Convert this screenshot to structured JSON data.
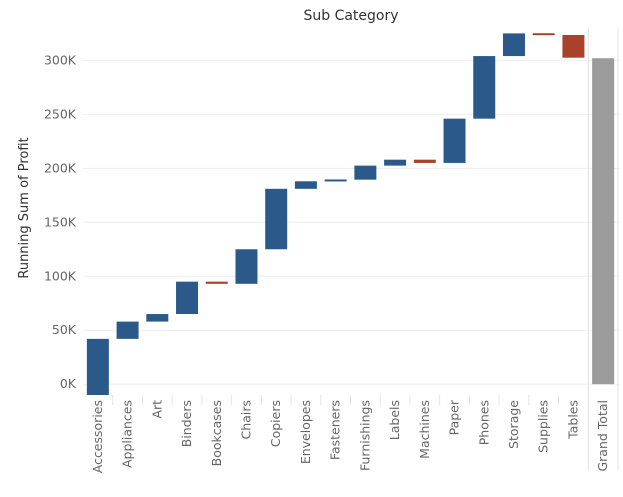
{
  "chart_data": {
    "type": "bar",
    "subtype": "waterfall",
    "title": "Sub Category",
    "ylabel": "Running Sum of Profit",
    "xlabel": "",
    "ylim": [
      -10000,
      330000
    ],
    "grid": true,
    "yticks": [
      0,
      50000,
      100000,
      150000,
      200000,
      250000,
      300000
    ],
    "ytick_labels": [
      "0K",
      "50K",
      "100K",
      "150K",
      "200K",
      "250K",
      "300K"
    ],
    "categories": [
      "Accessories",
      "Appliances",
      "Art",
      "Binders",
      "Bookcases",
      "Chairs",
      "Copiers",
      "Envelopes",
      "Fasteners",
      "Furnishings",
      "Labels",
      "Machines",
      "Paper",
      "Phones",
      "Storage",
      "Supplies",
      "Tables",
      "Grand Total"
    ],
    "values": [
      42000,
      16000,
      7000,
      30000,
      -2000,
      32000,
      56000,
      7000,
      1500,
      13000,
      5500,
      -3000,
      41000,
      58000,
      21000,
      -1500,
      -21000,
      302000
    ],
    "colors": {
      "increase": "#2b5a8a",
      "decrease": "#a8432a",
      "total": "#9b9b9b"
    }
  }
}
